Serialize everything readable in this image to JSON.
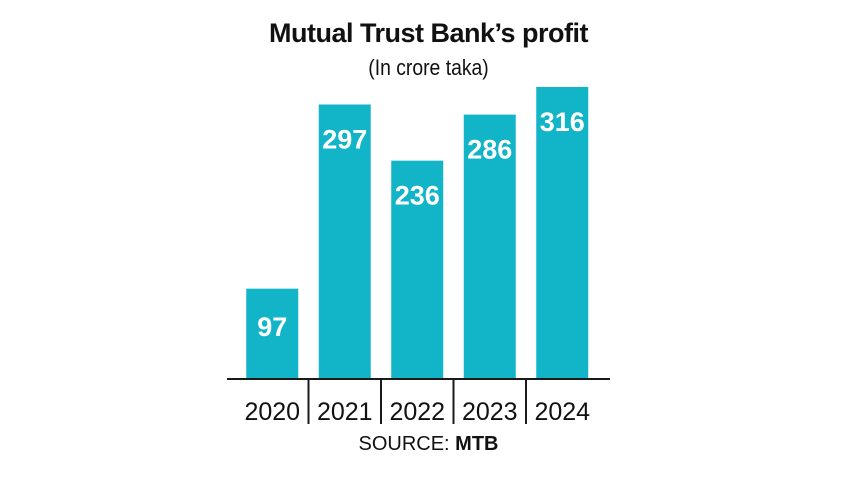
{
  "title": "Mutual Trust Bank’s profit",
  "subtitle": "(In crore taka)",
  "source": {
    "label": "SOURCE:",
    "value": "MTB"
  },
  "colors": {
    "bar": "#12b4c8",
    "bar_label": "#ffffff",
    "axis": "#1a1a1a",
    "text": "#111111"
  },
  "chart_data": {
    "type": "bar",
    "title": "Mutual Trust Bank’s profit",
    "subtitle": "(In crore taka)",
    "categories": [
      "2020",
      "2021",
      "2022",
      "2023",
      "2024"
    ],
    "values": [
      97,
      297,
      236,
      286,
      316
    ],
    "xlabel": "",
    "ylabel": "",
    "ylim": [
      0,
      316
    ],
    "grid": false,
    "data_labels": true,
    "legend": "none"
  }
}
